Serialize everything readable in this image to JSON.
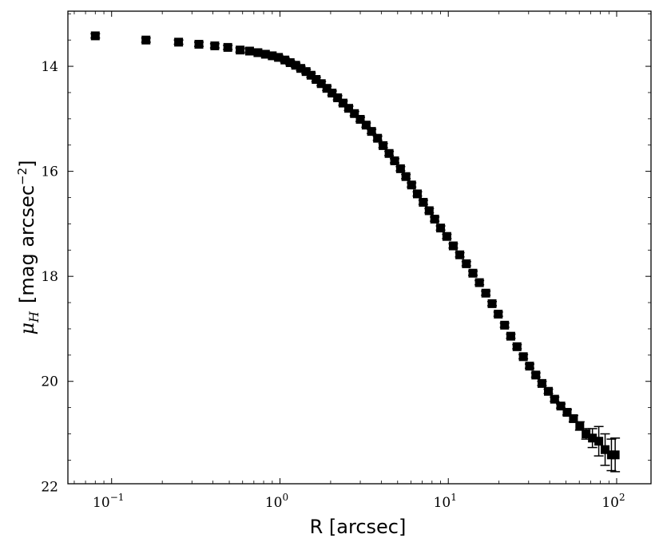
{
  "chart_data": {
    "type": "scatter",
    "xlabel": "R [arcsec]",
    "ylabel": {
      "prefix": "μ",
      "subscript": "H",
      "unit": "[mag arcsec",
      "exponent": "−2",
      "suffix": "]"
    },
    "xscale": "log",
    "xlim": [
      0.055,
      160
    ],
    "ylim": [
      21.95,
      12.95
    ],
    "y_inverted": true,
    "grid": false,
    "marker": "square",
    "marker_color": "#000000",
    "x_ticks": [
      {
        "value": 0.1,
        "base": "10",
        "exp": "−1"
      },
      {
        "value": 1,
        "base": "10",
        "exp": "0"
      },
      {
        "value": 10,
        "base": "10",
        "exp": "1"
      },
      {
        "value": 100,
        "base": "10",
        "exp": "2"
      }
    ],
    "y_ticks": [
      14,
      16,
      18,
      20,
      22
    ],
    "series": [
      {
        "x": [
          0.08,
          0.16,
          0.25,
          0.33,
          0.41,
          0.49,
          0.58,
          0.66,
          0.74,
          0.82,
          0.9,
          0.98,
          1.07,
          1.15,
          1.24,
          1.33,
          1.43,
          1.53,
          1.64,
          1.76,
          1.9,
          2.04,
          2.2,
          2.37,
          2.56,
          2.77,
          3.0,
          3.25,
          3.5,
          3.8,
          4.1,
          4.45,
          4.8,
          5.2,
          5.6,
          6.05,
          6.55,
          7.1,
          7.7,
          8.3,
          9.0,
          9.8,
          10.7,
          11.7,
          12.8,
          14.0,
          15.3,
          16.7,
          18.2,
          19.8,
          21.6,
          23.5,
          25.6,
          27.9,
          30.4,
          33.1,
          36.0,
          39.3,
          42.8,
          46.6,
          50.8,
          55.4,
          60.4,
          65.8,
          71.8,
          78.3,
          85.4,
          93.1,
          98.0
        ],
        "y": [
          13.42,
          13.5,
          13.54,
          13.58,
          13.61,
          13.64,
          13.69,
          13.71,
          13.74,
          13.77,
          13.8,
          13.83,
          13.88,
          13.93,
          13.98,
          14.04,
          14.1,
          14.17,
          14.25,
          14.33,
          14.42,
          14.51,
          14.6,
          14.7,
          14.8,
          14.9,
          15.01,
          15.12,
          15.24,
          15.37,
          15.51,
          15.66,
          15.8,
          15.95,
          16.1,
          16.26,
          16.43,
          16.59,
          16.75,
          16.91,
          17.08,
          17.24,
          17.42,
          17.59,
          17.76,
          17.94,
          18.12,
          18.32,
          18.52,
          18.72,
          18.93,
          19.14,
          19.34,
          19.53,
          19.71,
          19.88,
          20.04,
          20.19,
          20.34,
          20.47,
          20.59,
          20.71,
          20.85,
          21.0,
          21.08,
          21.14,
          21.3,
          21.4,
          21.4
        ],
        "yerr": [
          0.04,
          0.04,
          0.04,
          0.04,
          0.04,
          0.04,
          0.04,
          0.04,
          0.04,
          0.04,
          0.04,
          0.04,
          0.04,
          0.04,
          0.04,
          0.04,
          0.04,
          0.04,
          0.04,
          0.04,
          0.04,
          0.04,
          0.04,
          0.04,
          0.04,
          0.04,
          0.04,
          0.04,
          0.04,
          0.04,
          0.04,
          0.04,
          0.04,
          0.04,
          0.04,
          0.04,
          0.04,
          0.04,
          0.04,
          0.04,
          0.04,
          0.04,
          0.04,
          0.04,
          0.04,
          0.04,
          0.04,
          0.04,
          0.04,
          0.04,
          0.04,
          0.04,
          0.04,
          0.04,
          0.04,
          0.04,
          0.04,
          0.04,
          0.04,
          0.04,
          0.05,
          0.06,
          0.08,
          0.1,
          0.18,
          0.28,
          0.3,
          0.3,
          0.32
        ]
      }
    ]
  }
}
